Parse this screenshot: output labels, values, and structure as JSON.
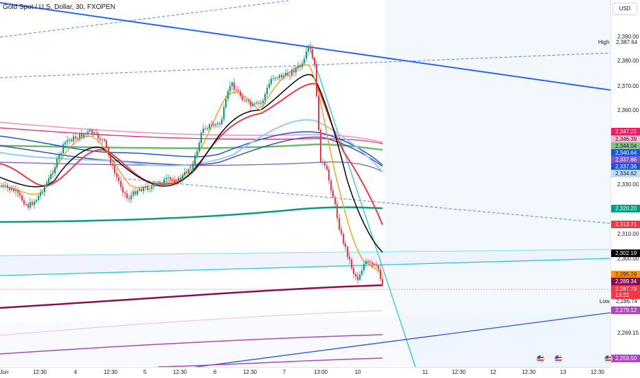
{
  "title": "Gold Spot / U.S. Dollar, 30, FXOPEN",
  "currency": "USD",
  "price_ticks": [
    "2,390.00",
    "2,380.00",
    "2,370.00",
    "2,360.00",
    "2,330.00",
    "2,310.00",
    "2,300.00",
    "2,269.15"
  ],
  "tags": [
    {
      "text": "2,347.21",
      "color": "#e91e63"
    },
    {
      "text": "2,346.39",
      "color": "#f8bbd0"
    },
    {
      "text": "2,344.04",
      "color": "#4caf50"
    },
    {
      "text": "2,340.64",
      "color": "#1e53e5"
    },
    {
      "text": "2,337.86",
      "color": "#7e57c2"
    },
    {
      "text": "2,337.36",
      "color": "#1e53e5"
    },
    {
      "text": "2,334.62",
      "color": "#bbdefb"
    },
    {
      "text": "2,320.20",
      "color": "#089981"
    },
    {
      "text": "2,313.71",
      "color": "#f23645"
    },
    {
      "text": "2,302.19",
      "color": "#000000"
    },
    {
      "text": "2,295.29",
      "color": "#ff9800"
    },
    {
      "text": "2,289.34",
      "color": "#880e4f"
    },
    {
      "text": "2,287.79",
      "color": "#f23645"
    },
    {
      "text": "13:22",
      "color": "#f23645"
    },
    {
      "text": "2,279.12",
      "color": "#ab47bc"
    },
    {
      "text": "2,259.50",
      "color": "#ab47bc"
    }
  ],
  "high": {
    "label": "High",
    "value": "2,387.64"
  },
  "low": {
    "label": "Low",
    "value": "2,286.74"
  },
  "time_labels": [
    "Jun",
    "12:30",
    "4",
    "12:30",
    "5",
    "12:30",
    "6",
    "12:30",
    "7",
    "13:00",
    "10",
    "11",
    "12:30",
    "12",
    "12:30",
    "13",
    "12:30"
  ]
}
